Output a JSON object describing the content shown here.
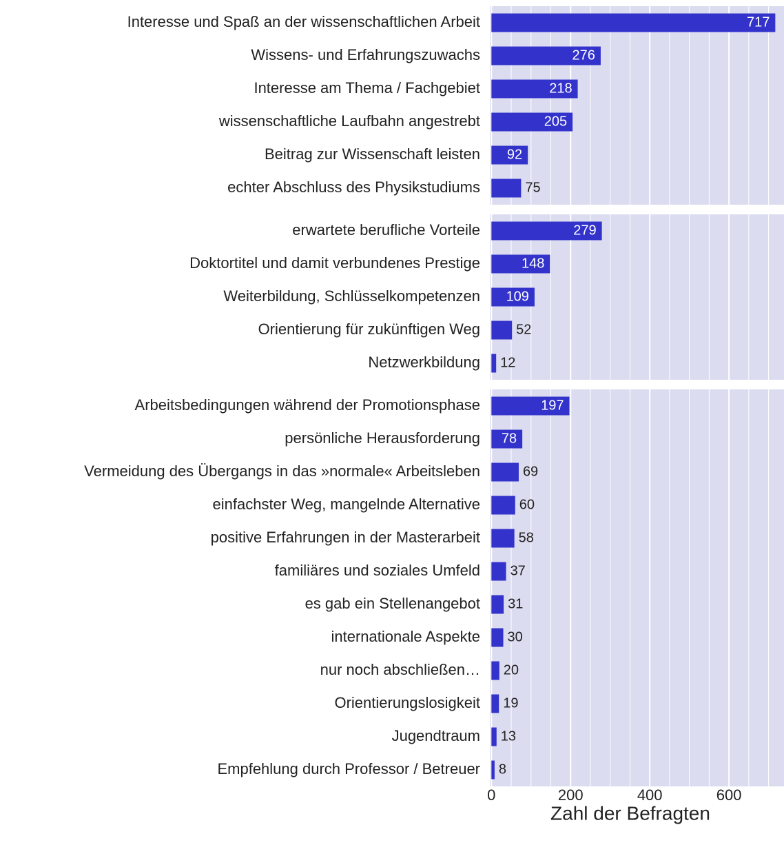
{
  "chart_data": {
    "type": "bar",
    "orientation": "horizontal",
    "x_label": "Zahl der Befragten",
    "color": "#3333cc",
    "panel_color": "#dcdcf0",
    "grid": true,
    "xlim": [
      -4,
      739
    ],
    "xticks": [
      0,
      200,
      400,
      600
    ],
    "xminor": [
      50,
      100,
      150,
      250,
      300,
      350,
      450,
      500,
      550,
      650,
      700
    ],
    "panels": [
      {
        "categories": [
          "Interesse und Spaß an der wissenschaftlichen Arbeit",
          "Wissens- und Erfahrungszuwachs",
          "Interesse am Thema / Fachgebiet",
          "wissenschaftliche Laufbahn angestrebt",
          "Beitrag zur Wissenschaft leisten",
          "echter Abschluss des Physikstudiums"
        ],
        "values": [
          717,
          276,
          218,
          205,
          92,
          75
        ]
      },
      {
        "categories": [
          "erwartete berufliche Vorteile",
          "Doktortitel und damit verbundenes Prestige",
          "Weiterbildung, Schlüsselkompetenzen",
          "Orientierung für zukünftigen Weg",
          "Netzwerkbildung"
        ],
        "values": [
          279,
          148,
          109,
          52,
          12
        ]
      },
      {
        "categories": [
          "Arbeitsbedingungen während der Promotionsphase",
          "persönliche Herausforderung",
          "Vermeidung des Übergangs in das »normale« Arbeitsleben",
          "einfachster Weg, mangelnde Alternative",
          "positive Erfahrungen in der Masterarbeit",
          "familiäres und soziales Umfeld",
          "es gab ein Stellenangebot",
          "internationale Aspekte",
          "nur noch abschließen…",
          "Orientierungslosigkeit",
          "Jugendtraum",
          "Empfehlung durch Professor / Betreuer"
        ],
        "values": [
          197,
          78,
          69,
          60,
          58,
          37,
          31,
          30,
          20,
          19,
          13,
          8
        ]
      }
    ]
  }
}
